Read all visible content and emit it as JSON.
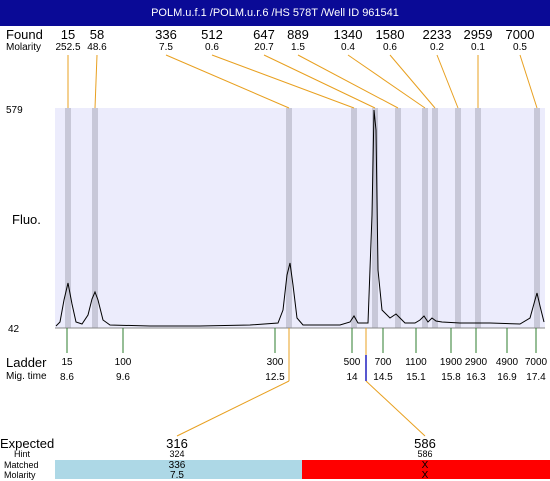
{
  "title": "POLM.u.f.1 /POLM.u.r.6 /HS 578T /Well ID 961541",
  "labels": {
    "found": "Found",
    "molarity": "Molarity",
    "fluo": "Fluo.",
    "ladder": "Ladder",
    "mig_time": "Mig. time",
    "expected": "Expected",
    "hint": "Hint",
    "matched": "Matched",
    "molarity_bottom": "Molarity"
  },
  "y_axis": {
    "max": "579",
    "min": "42"
  },
  "found_peaks": [
    {
      "size": "15",
      "molarity": "252.5"
    },
    {
      "size": "58",
      "molarity": "48.6"
    },
    {
      "size": "336",
      "molarity": "7.5"
    },
    {
      "size": "512",
      "molarity": "0.6"
    },
    {
      "size": "647",
      "molarity": "20.7"
    },
    {
      "size": "889",
      "molarity": "1.5"
    },
    {
      "size": "1340",
      "molarity": "0.4"
    },
    {
      "size": "1580",
      "molarity": "0.6"
    },
    {
      "size": "2233",
      "molarity": "0.2"
    },
    {
      "size": "2959",
      "molarity": "0.1"
    },
    {
      "size": "7000",
      "molarity": "0.5"
    }
  ],
  "ladder": [
    {
      "size": "15",
      "time": "8.6"
    },
    {
      "size": "100",
      "time": "9.6"
    },
    {
      "size": "300",
      "time": "12.5"
    },
    {
      "size": "500",
      "time": "14"
    },
    {
      "size": "700",
      "time": "14.5"
    },
    {
      "size": "1100",
      "time": "15.1"
    },
    {
      "size": "1900",
      "time": "15.8"
    },
    {
      "size": "2900",
      "time": "16.3"
    },
    {
      "size": "4900",
      "time": "16.9"
    },
    {
      "size": "7000",
      "time": "17.4"
    }
  ],
  "expected": [
    {
      "size": "316",
      "hint": "324",
      "matched": "336",
      "molarity": "7.5",
      "status_color": "#add8e6"
    },
    {
      "size": "586",
      "hint": "586",
      "matched": "X",
      "molarity": "X",
      "status_color": "#ff0000"
    }
  ],
  "colors": {
    "plot_bg": "#ececfc",
    "peak_band": "#c8c8d8",
    "connector": "#e8a020",
    "ladder_tick": "#2e7d2e",
    "marker": "#2020c0"
  }
}
